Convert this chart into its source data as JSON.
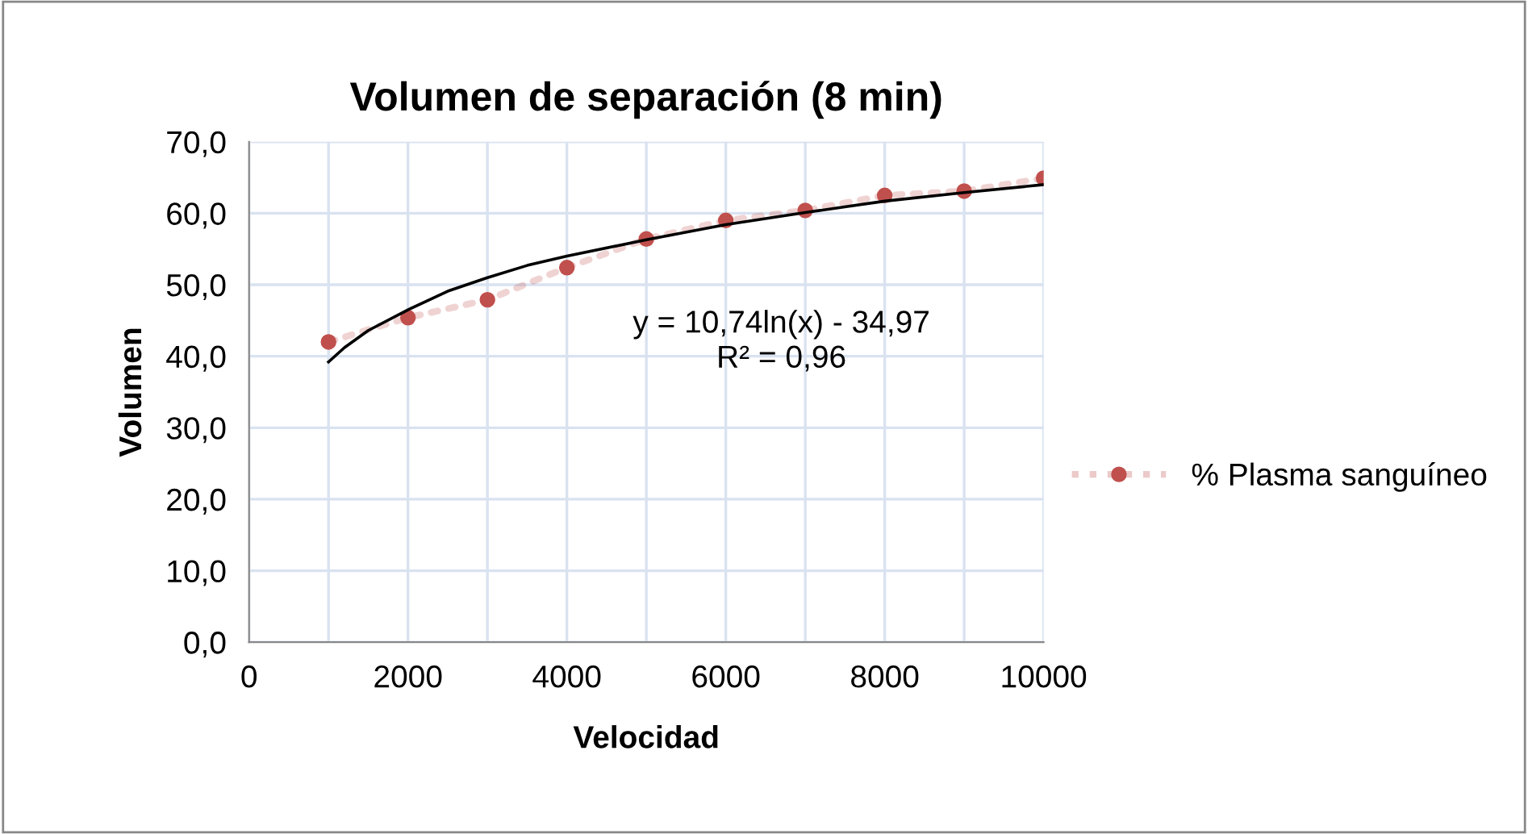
{
  "chart_data": {
    "type": "line",
    "title": "Volumen de separación (8 min)",
    "xlabel": "Velocidad",
    "ylabel": "Volumen",
    "series": [
      {
        "name": "% Plasma sanguíneo",
        "color": "#c0504d",
        "line_style": "dotted",
        "marker": "circle",
        "x": [
          1000,
          2000,
          3000,
          4000,
          5000,
          6000,
          7000,
          8000,
          9000,
          10000
        ],
        "values": [
          42.0,
          45.4,
          47.9,
          52.4,
          56.4,
          59.0,
          60.4,
          62.5,
          63.1,
          64.9
        ]
      },
      {
        "type": "line",
        "color": "#000000",
        "line_style": "solid",
        "marker": "none",
        "x": [
          1000,
          1200,
          1500,
          2000,
          2500,
          3000,
          3500,
          4000,
          5000,
          6000,
          7000,
          8000,
          9000,
          10000
        ],
        "values": [
          39.2,
          41.2,
          43.6,
          46.5,
          49.1,
          51.0,
          52.7,
          54.0,
          56.3,
          58.4,
          60.1,
          61.7,
          62.9,
          64.0
        ]
      }
    ],
    "annotations": [
      "y = 10,74ln(x) - 34,97\nR² = 0,96"
    ],
    "xlim": [
      0,
      10000
    ],
    "ylim": [
      0,
      70
    ],
    "xticks": [
      0,
      {
        "value": 1000,
        "label": null
      },
      2000,
      {
        "value": 3000,
        "label": null
      },
      4000,
      {
        "value": 5000,
        "label": null
      },
      6000,
      {
        "value": 7000,
        "label": null
      },
      8000,
      {
        "value": 9000,
        "label": null
      },
      10000
    ],
    "yticks": [
      {
        "value": 0,
        "label": "0,0"
      },
      {
        "value": 10,
        "label": "10,0"
      },
      {
        "value": 20,
        "label": "20,0"
      },
      {
        "value": 30,
        "label": "30,0"
      },
      {
        "value": 40,
        "label": "40,0"
      },
      {
        "value": 50,
        "label": "50,0"
      },
      {
        "value": 60,
        "label": "60,0"
      },
      {
        "value": 70,
        "label": "70,0"
      }
    ],
    "grid": true,
    "legend": "right"
  }
}
